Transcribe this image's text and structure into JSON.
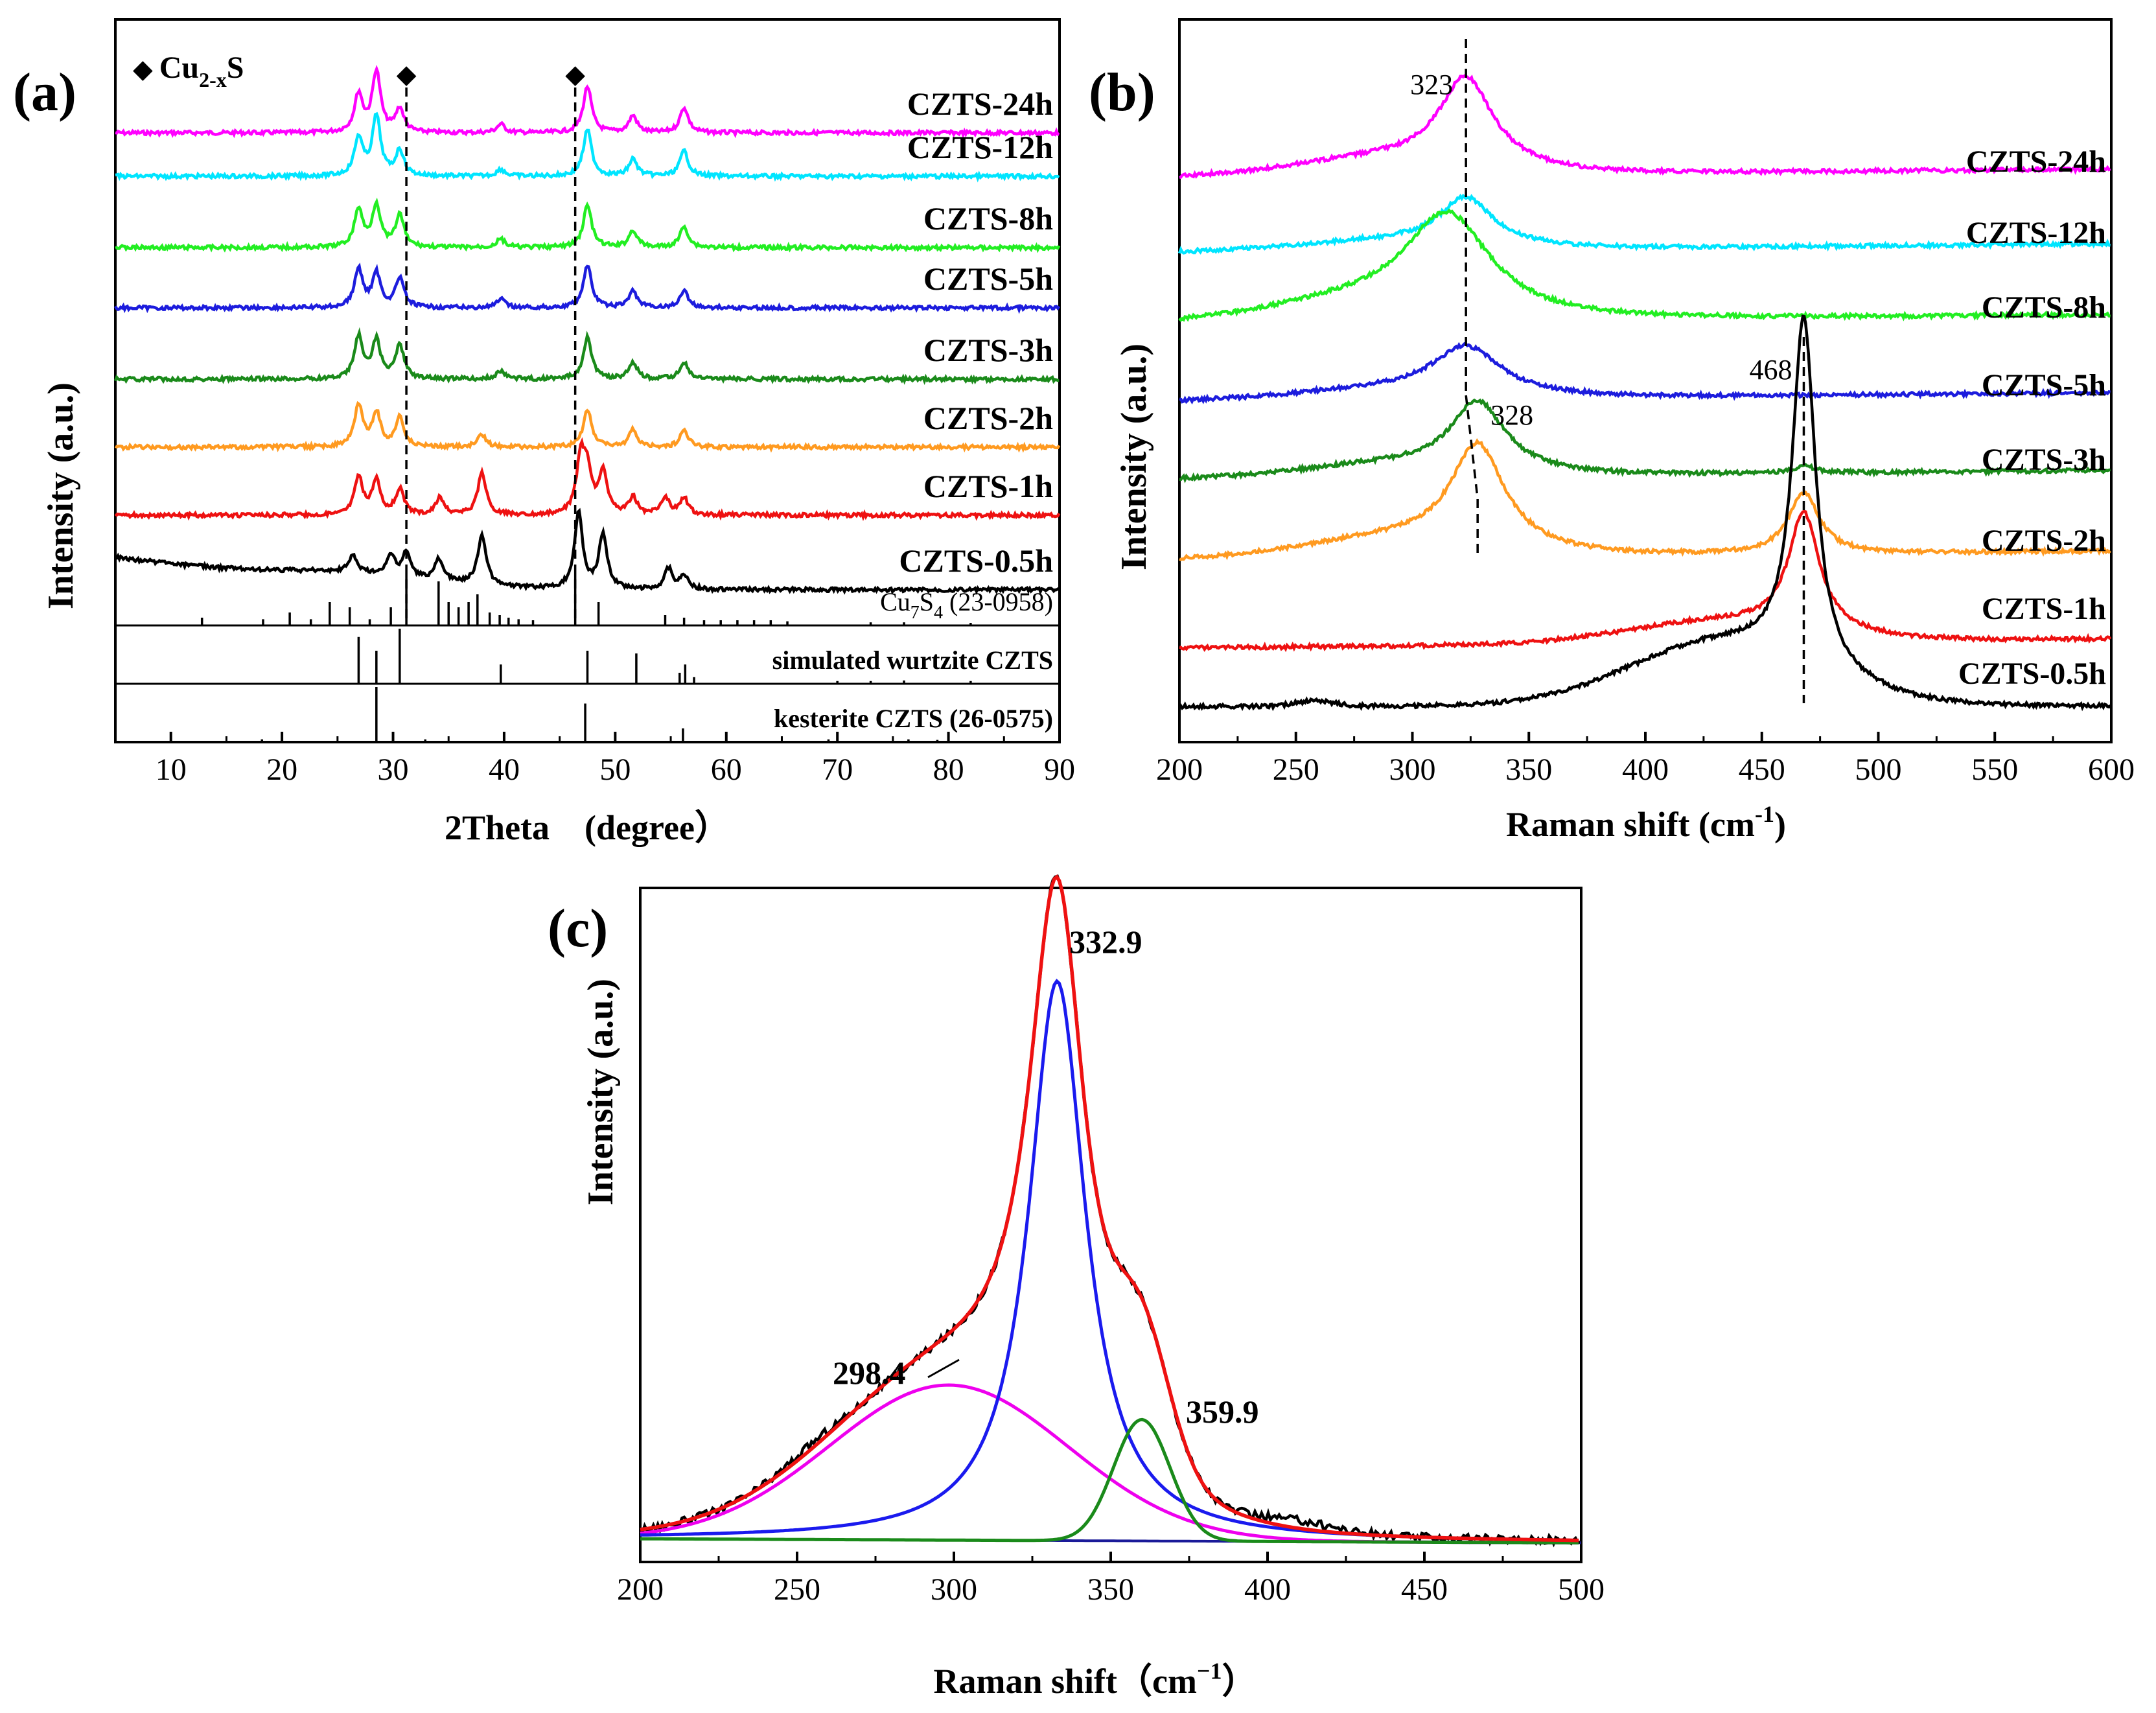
{
  "chart_data": [
    {
      "panel": "(a)",
      "type": "line",
      "xlabel": "2Theta　(degree）",
      "ylabel": "Intensity (a.u.)",
      "xlim": [
        5,
        90
      ],
      "xticks": [
        10,
        20,
        30,
        40,
        50,
        60,
        70,
        80,
        90
      ],
      "tick_labels": [
        "10",
        "20",
        "30",
        "40",
        "50",
        "60",
        "70",
        "80",
        "90"
      ],
      "marker_legend": {
        "symbol": "◆",
        "text": "Cu",
        "sub": "2-x",
        "tail": "S"
      },
      "markers": [
        31.2,
        46.4
      ],
      "series": [
        {
          "name": "CZTS-24h",
          "color": "#ff00ff",
          "peaks": [
            [
              26.9,
              0.45
            ],
            [
              28.5,
              0.72
            ],
            [
              30.6,
              0.28
            ],
            [
              39.7,
              0.1
            ],
            [
              47.5,
              0.55
            ],
            [
              51.6,
              0.2
            ],
            [
              56.2,
              0.3
            ]
          ]
        },
        {
          "name": "CZTS-12h",
          "color": "#00e5ff",
          "peaks": [
            [
              26.9,
              0.45
            ],
            [
              28.5,
              0.7
            ],
            [
              30.6,
              0.3
            ],
            [
              39.7,
              0.08
            ],
            [
              47.5,
              0.55
            ],
            [
              51.6,
              0.2
            ],
            [
              56.2,
              0.3
            ]
          ]
        },
        {
          "name": "CZTS-8h",
          "color": "#22ee22",
          "peaks": [
            [
              26.9,
              0.45
            ],
            [
              28.5,
              0.5
            ],
            [
              30.6,
              0.38
            ],
            [
              39.7,
              0.1
            ],
            [
              47.5,
              0.5
            ],
            [
              51.6,
              0.2
            ],
            [
              56.2,
              0.25
            ]
          ]
        },
        {
          "name": "CZTS-5h",
          "color": "#1c1cdd",
          "peaks": [
            [
              26.9,
              0.45
            ],
            [
              28.5,
              0.4
            ],
            [
              30.6,
              0.35
            ],
            [
              39.7,
              0.1
            ],
            [
              47.5,
              0.5
            ],
            [
              51.6,
              0.2
            ],
            [
              56.2,
              0.2
            ]
          ]
        },
        {
          "name": "CZTS-3h",
          "color": "#1a8a1a",
          "peaks": [
            [
              26.9,
              0.5
            ],
            [
              28.5,
              0.45
            ],
            [
              30.6,
              0.4
            ],
            [
              39.7,
              0.1
            ],
            [
              47.5,
              0.5
            ],
            [
              51.6,
              0.2
            ],
            [
              56.2,
              0.2
            ]
          ]
        },
        {
          "name": "CZTS-2h",
          "color": "#ff9a20",
          "peaks": [
            [
              26.9,
              0.5
            ],
            [
              28.5,
              0.4
            ],
            [
              30.6,
              0.35
            ],
            [
              38.0,
              0.15
            ],
            [
              47.5,
              0.45
            ],
            [
              51.6,
              0.2
            ],
            [
              56.2,
              0.2
            ]
          ]
        },
        {
          "name": "CZTS-1h",
          "color": "#ee1111",
          "peaks": [
            [
              26.9,
              0.45
            ],
            [
              28.5,
              0.4
            ],
            [
              30.6,
              0.3
            ],
            [
              34.2,
              0.2
            ],
            [
              38.0,
              0.5
            ],
            [
              46.9,
              0.65
            ],
            [
              47.5,
              0.45
            ],
            [
              48.9,
              0.5
            ],
            [
              51.6,
              0.2
            ],
            [
              54.5,
              0.2
            ],
            [
              56.2,
              0.2
            ]
          ]
        },
        {
          "name": "CZTS-0.5h",
          "color": "#000000",
          "peaks": [
            [
              26.4,
              0.2
            ],
            [
              29.8,
              0.25
            ],
            [
              31.2,
              0.3
            ],
            [
              34.1,
              0.25
            ],
            [
              38.0,
              0.6
            ],
            [
              46.7,
              0.9
            ],
            [
              48.9,
              0.65
            ],
            [
              54.8,
              0.25
            ],
            [
              56.2,
              0.15
            ]
          ]
        }
      ],
      "references": [
        {
          "name": "Cu",
          "sub": "7",
          "mid": "S",
          "sub2": "4",
          "tail": " (23-0958)",
          "lines": [
            [
              12.8,
              0.15
            ],
            [
              18.3,
              0.12
            ],
            [
              20.7,
              0.25
            ],
            [
              22.6,
              0.12
            ],
            [
              24.3,
              0.45
            ],
            [
              26.1,
              0.35
            ],
            [
              27.9,
              0.12
            ],
            [
              29.8,
              0.35
            ],
            [
              31.2,
              1.0
            ],
            [
              34.1,
              0.85
            ],
            [
              35.0,
              0.45
            ],
            [
              35.9,
              0.35
            ],
            [
              36.8,
              0.45
            ],
            [
              37.6,
              0.6
            ],
            [
              38.7,
              0.25
            ],
            [
              39.6,
              0.2
            ],
            [
              40.4,
              0.15
            ],
            [
              41.3,
              0.12
            ],
            [
              42.6,
              0.1
            ],
            [
              46.4,
              1.0
            ],
            [
              48.5,
              0.45
            ],
            [
              54.5,
              0.2
            ],
            [
              56.2,
              0.15
            ],
            [
              58.0,
              0.1
            ],
            [
              59.5,
              0.1
            ],
            [
              61.0,
              0.1
            ],
            [
              62.5,
              0.1
            ],
            [
              64.0,
              0.1
            ],
            [
              65.5,
              0.08
            ],
            [
              73.0,
              0.06
            ],
            [
              76.0,
              0.06
            ],
            [
              82.0,
              0.05
            ]
          ]
        },
        {
          "name": "simulated wurtzite CZTS",
          "lines": [
            [
              26.9,
              0.85
            ],
            [
              28.5,
              0.6
            ],
            [
              30.6,
              1.0
            ],
            [
              39.7,
              0.35
            ],
            [
              47.5,
              0.6
            ],
            [
              51.9,
              0.55
            ],
            [
              55.8,
              0.2
            ],
            [
              56.3,
              0.35
            ],
            [
              57.1,
              0.12
            ],
            [
              70.0,
              0.05
            ],
            [
              73.0,
              0.05
            ],
            [
              76.0,
              0.06
            ],
            [
              82.0,
              0.05
            ]
          ]
        },
        {
          "name": "kesterite CZTS (26-0575)",
          "lines": [
            [
              18.2,
              0.05
            ],
            [
              28.5,
              1.0
            ],
            [
              32.9,
              0.05
            ],
            [
              47.3,
              0.7
            ],
            [
              56.1,
              0.25
            ],
            [
              69.2,
              0.05
            ],
            [
              76.4,
              0.05
            ],
            [
              79.0,
              0.04
            ]
          ]
        }
      ]
    },
    {
      "panel": "(b)",
      "type": "line",
      "xlabel": "Raman shift (cm",
      "xlabel_sup": "-1",
      "xlabel_tail": ")",
      "ylabel": "Intensity (a.u.)",
      "xlim": [
        200,
        600
      ],
      "xticks": [
        200,
        250,
        300,
        350,
        400,
        450,
        500,
        550,
        600
      ],
      "tick_labels": [
        "200",
        "250",
        "300",
        "350",
        "400",
        "450",
        "500",
        "550",
        "600"
      ],
      "annotations": [
        {
          "x": 323,
          "text": "323"
        },
        {
          "x": 328,
          "text": "328"
        },
        {
          "x": 468,
          "text": "468"
        }
      ],
      "series": [
        {
          "name": "CZTS-24h",
          "color": "#ff00ff",
          "peak_cm": 323,
          "intensity": 0.65,
          "width": 14
        },
        {
          "name": "CZTS-12h",
          "color": "#00e5ff",
          "peak_cm": 323,
          "intensity": 0.35,
          "width": 14
        },
        {
          "name": "CZTS-8h",
          "color": "#22ee22",
          "peak_cm": 315,
          "intensity": 0.72,
          "width": 22
        },
        {
          "name": "CZTS-5h",
          "color": "#1c1cdd",
          "peak_cm": 323,
          "intensity": 0.35,
          "width": 18
        },
        {
          "name": "CZTS-3h",
          "color": "#1a8a1a",
          "peak_cm": 328,
          "intensity": 0.5,
          "width": 14
        },
        {
          "name": "CZTS-2h",
          "color": "#ff9a20",
          "peak_cm": 328,
          "intensity": 0.75,
          "width": 14,
          "secondary": [
            468,
            0.45,
            8
          ]
        },
        {
          "name": "CZTS-1h",
          "color": "#ee1111",
          "peak_cm": 468,
          "intensity": 0.85,
          "width": 8
        },
        {
          "name": "CZTS-0.5h",
          "color": "#000000",
          "peak_cm": 468,
          "intensity": 2.55,
          "width": 6
        }
      ]
    },
    {
      "panel": "(c)",
      "type": "line",
      "xlabel": "Raman shift（cm",
      "xlabel_sup": "−1",
      "xlabel_tail": "）",
      "ylabel": "Intensity (a.u.)",
      "xlim": [
        200,
        500
      ],
      "xticks": [
        200,
        250,
        300,
        350,
        400,
        450,
        500
      ],
      "tick_labels": [
        "200",
        "250",
        "300",
        "350",
        "400",
        "450",
        "500"
      ],
      "fit_components": [
        {
          "name": "298.4",
          "center": 298.4,
          "amplitude": 0.23,
          "width": 38,
          "shape": "gauss",
          "color": "#ee00ee"
        },
        {
          "name": "332.9",
          "center": 332.9,
          "amplitude": 0.83,
          "width": 11,
          "shape": "lorentz",
          "color": "#1a1aee"
        },
        {
          "name": "359.9",
          "center": 359.9,
          "amplitude": 0.18,
          "width": 9,
          "shape": "gauss",
          "color": "#1a8a1a"
        }
      ],
      "baseline_color": "#1a1a99",
      "measured_color": "#000000",
      "fit_color": "#ee1111",
      "peak_labels": [
        "298.4",
        "332.9",
        "359.9"
      ]
    }
  ]
}
